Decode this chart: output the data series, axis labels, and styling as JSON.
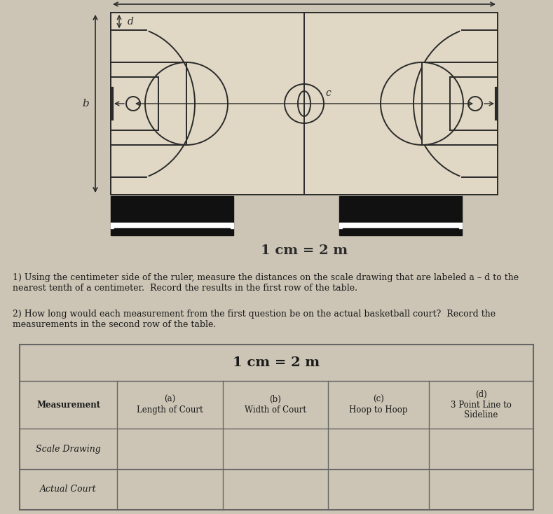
{
  "bg_color": "#ccc5b5",
  "court_bg": "#e0d8c4",
  "court_line_color": "#2a2a2a",
  "scale_text": "1 cm = 2 m",
  "instruction1": "1) Using the centimeter side of the ruler, measure the distances on the scale drawing that are labeled a – d to the\nnearest tenth of a centimeter.  Record the results in the first row of the table.",
  "instruction2": "2) How long would each measurement from the first question be on the actual basketball court?  Record the\nmeasurements in the second row of the table.",
  "table_title": "1 cm = 2 m",
  "font_color": "#1a1a1a"
}
